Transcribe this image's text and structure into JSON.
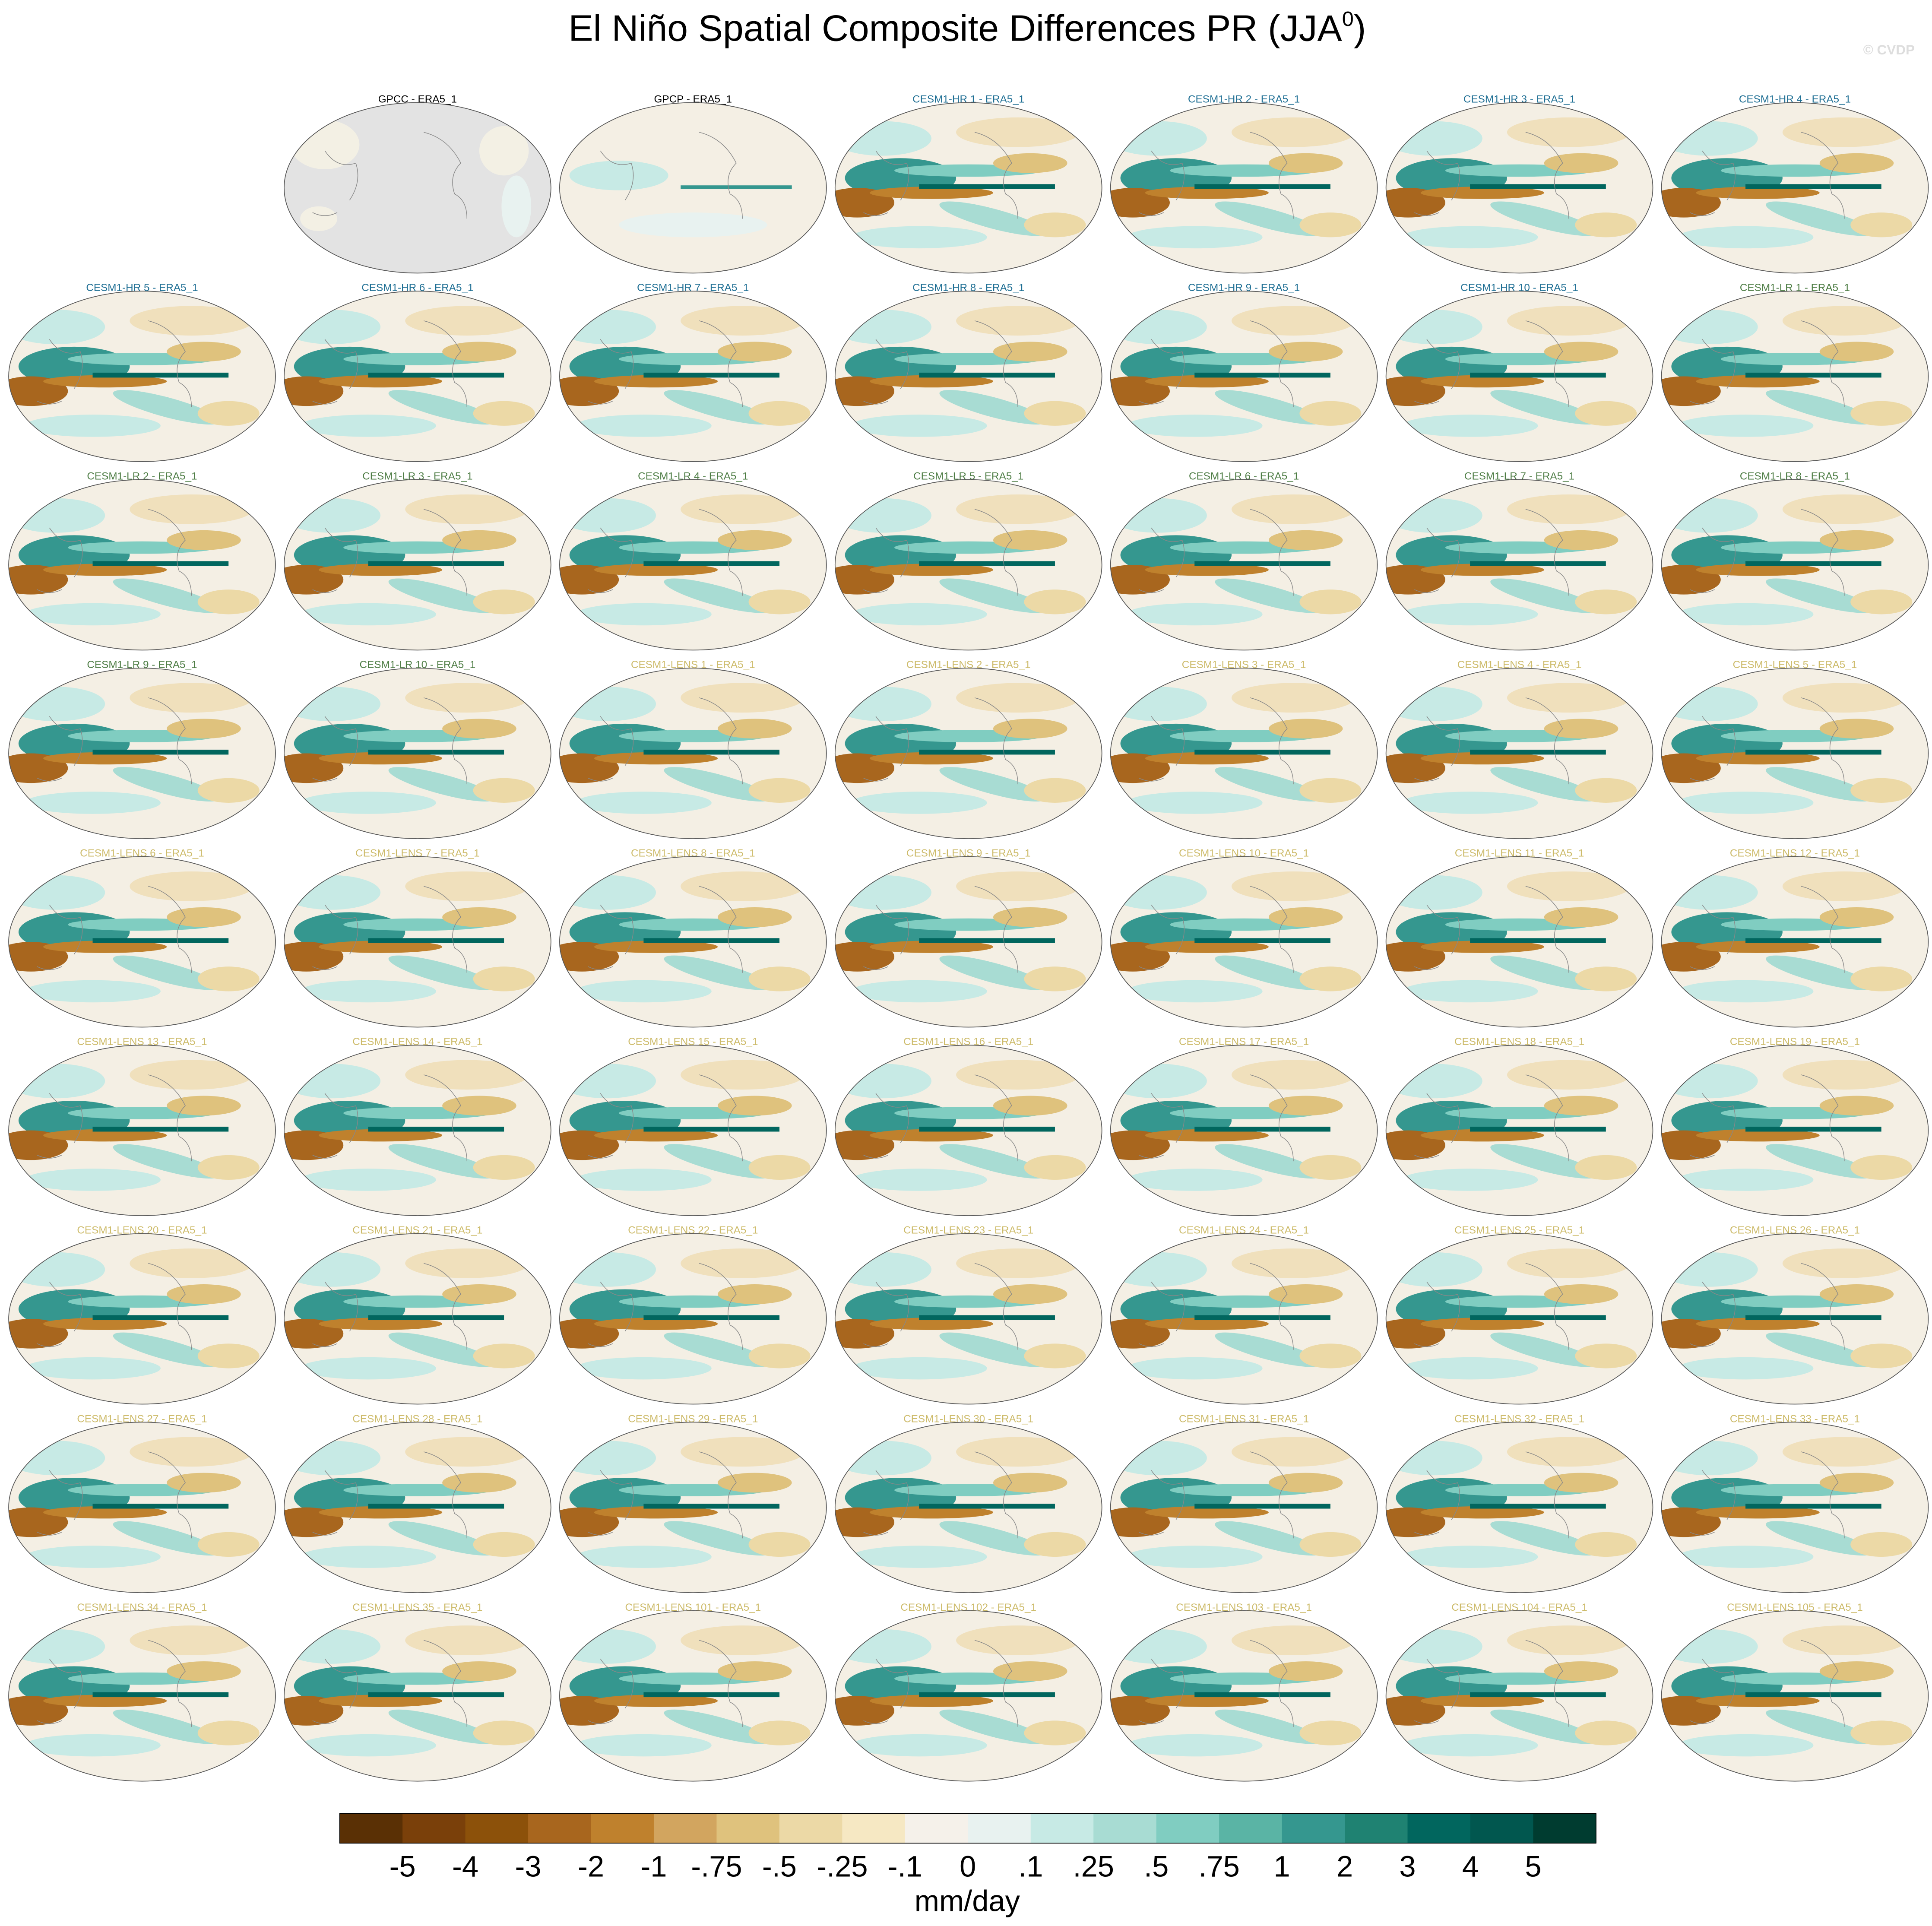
{
  "title": "El Niño Spatial Composite Differences PR (JJA",
  "title_superscript": "0",
  "title_close": ")",
  "watermark": "© CVDP",
  "panels": [
    {
      "label": "GPCC - ERA5_1",
      "color": "#000000"
    },
    {
      "label": "GPCP - ERA5_1",
      "color": "#000000"
    },
    {
      "label": "CESM1-HR 1 - ERA5_1",
      "color": "#1f6f94"
    },
    {
      "label": "CESM1-HR 2 - ERA5_1",
      "color": "#1f6f94"
    },
    {
      "label": "CESM1-HR 3 - ERA5_1",
      "color": "#1f6f94"
    },
    {
      "label": "CESM1-HR 4 - ERA5_1",
      "color": "#1f6f94"
    },
    {
      "label": "CESM1-HR 5 - ERA5_1",
      "color": "#1f6f94"
    },
    {
      "label": "CESM1-HR 6 - ERA5_1",
      "color": "#1f6f94"
    },
    {
      "label": "CESM1-HR 7 - ERA5_1",
      "color": "#1f6f94"
    },
    {
      "label": "CESM1-HR 8 - ERA5_1",
      "color": "#1f6f94"
    },
    {
      "label": "CESM1-HR 9 - ERA5_1",
      "color": "#1f6f94"
    },
    {
      "label": "CESM1-HR 10 - ERA5_1",
      "color": "#1f6f94"
    },
    {
      "label": "CESM1-LR 1 - ERA5_1",
      "color": "#4e7d45"
    },
    {
      "label": "CESM1-LR 2 - ERA5_1",
      "color": "#4e7d45"
    },
    {
      "label": "CESM1-LR 3 - ERA5_1",
      "color": "#4e7d45"
    },
    {
      "label": "CESM1-LR 4 - ERA5_1",
      "color": "#4e7d45"
    },
    {
      "label": "CESM1-LR 5 - ERA5_1",
      "color": "#4e7d45"
    },
    {
      "label": "CESM1-LR 6 - ERA5_1",
      "color": "#4e7d45"
    },
    {
      "label": "CESM1-LR 7 - ERA5_1",
      "color": "#4e7d45"
    },
    {
      "label": "CESM1-LR 8 - ERA5_1",
      "color": "#4e7d45"
    },
    {
      "label": "CESM1-LR 9 - ERA5_1",
      "color": "#4e7d45"
    },
    {
      "label": "CESM1-LR 10 - ERA5_1",
      "color": "#4e7d45"
    },
    {
      "label": "CESM1-LENS 1 - ERA5_1",
      "color": "#cdbb6a"
    },
    {
      "label": "CESM1-LENS 2 - ERA5_1",
      "color": "#cdbb6a"
    },
    {
      "label": "CESM1-LENS 3 - ERA5_1",
      "color": "#cdbb6a"
    },
    {
      "label": "CESM1-LENS 4 - ERA5_1",
      "color": "#cdbb6a"
    },
    {
      "label": "CESM1-LENS 5 - ERA5_1",
      "color": "#cdbb6a"
    },
    {
      "label": "CESM1-LENS 6 - ERA5_1",
      "color": "#cdbb6a"
    },
    {
      "label": "CESM1-LENS 7 - ERA5_1",
      "color": "#cdbb6a"
    },
    {
      "label": "CESM1-LENS 8 - ERA5_1",
      "color": "#cdbb6a"
    },
    {
      "label": "CESM1-LENS 9 - ERA5_1",
      "color": "#cdbb6a"
    },
    {
      "label": "CESM1-LENS 10 - ERA5_1",
      "color": "#cdbb6a"
    },
    {
      "label": "CESM1-LENS 11 - ERA5_1",
      "color": "#cdbb6a"
    },
    {
      "label": "CESM1-LENS 12 - ERA5_1",
      "color": "#cdbb6a"
    },
    {
      "label": "CESM1-LENS 13 - ERA5_1",
      "color": "#cdbb6a"
    },
    {
      "label": "CESM1-LENS 14 - ERA5_1",
      "color": "#cdbb6a"
    },
    {
      "label": "CESM1-LENS 15 - ERA5_1",
      "color": "#cdbb6a"
    },
    {
      "label": "CESM1-LENS 16 - ERA5_1",
      "color": "#cdbb6a"
    },
    {
      "label": "CESM1-LENS 17 - ERA5_1",
      "color": "#cdbb6a"
    },
    {
      "label": "CESM1-LENS 18 - ERA5_1",
      "color": "#cdbb6a"
    },
    {
      "label": "CESM1-LENS 19 - ERA5_1",
      "color": "#cdbb6a"
    },
    {
      "label": "CESM1-LENS 20 - ERA5_1",
      "color": "#cdbb6a"
    },
    {
      "label": "CESM1-LENS 21 - ERA5_1",
      "color": "#cdbb6a"
    },
    {
      "label": "CESM1-LENS 22 - ERA5_1",
      "color": "#cdbb6a"
    },
    {
      "label": "CESM1-LENS 23 - ERA5_1",
      "color": "#cdbb6a"
    },
    {
      "label": "CESM1-LENS 24 - ERA5_1",
      "color": "#cdbb6a"
    },
    {
      "label": "CESM1-LENS 25 - ERA5_1",
      "color": "#cdbb6a"
    },
    {
      "label": "CESM1-LENS 26 - ERA5_1",
      "color": "#cdbb6a"
    },
    {
      "label": "CESM1-LENS 27 - ERA5_1",
      "color": "#cdbb6a"
    },
    {
      "label": "CESM1-LENS 28 - ERA5_1",
      "color": "#cdbb6a"
    },
    {
      "label": "CESM1-LENS 29 - ERA5_1",
      "color": "#cdbb6a"
    },
    {
      "label": "CESM1-LENS 30 - ERA5_1",
      "color": "#cdbb6a"
    },
    {
      "label": "CESM1-LENS 31 - ERA5_1",
      "color": "#cdbb6a"
    },
    {
      "label": "CESM1-LENS 32 - ERA5_1",
      "color": "#cdbb6a"
    },
    {
      "label": "CESM1-LENS 33 - ERA5_1",
      "color": "#cdbb6a"
    },
    {
      "label": "CESM1-LENS 34 - ERA5_1",
      "color": "#cdbb6a"
    },
    {
      "label": "CESM1-LENS 35 - ERA5_1",
      "color": "#cdbb6a"
    },
    {
      "label": "CESM1-LENS 101 - ERA5_1",
      "color": "#cdbb6a"
    },
    {
      "label": "CESM1-LENS 102 - ERA5_1",
      "color": "#cdbb6a"
    },
    {
      "label": "CESM1-LENS 103 - ERA5_1",
      "color": "#cdbb6a"
    },
    {
      "label": "CESM1-LENS 104 - ERA5_1",
      "color": "#cdbb6a"
    },
    {
      "label": "CESM1-LENS 105 - ERA5_1",
      "color": "#cdbb6a"
    }
  ],
  "colorbar": {
    "colors": [
      "#5a3005",
      "#7a400a",
      "#8c510a",
      "#a8661e",
      "#bf812d",
      "#d2a55f",
      "#dfc27d",
      "#ecd9a6",
      "#f6e8c3",
      "#f5f1ea",
      "#e8f2f0",
      "#c7eae5",
      "#a8dcd3",
      "#80cdc1",
      "#5ab4a5",
      "#35978f",
      "#1f8272",
      "#01665e",
      "#01574f",
      "#003c30"
    ],
    "labels": [
      "-5",
      "-4",
      "-3",
      "-2",
      "-1",
      "-.75",
      "-.5",
      "-.25",
      "-.1",
      "0",
      ".1",
      ".25",
      ".5",
      ".75",
      "1",
      "2",
      "3",
      "4",
      "5"
    ],
    "units": "mm/day"
  }
}
